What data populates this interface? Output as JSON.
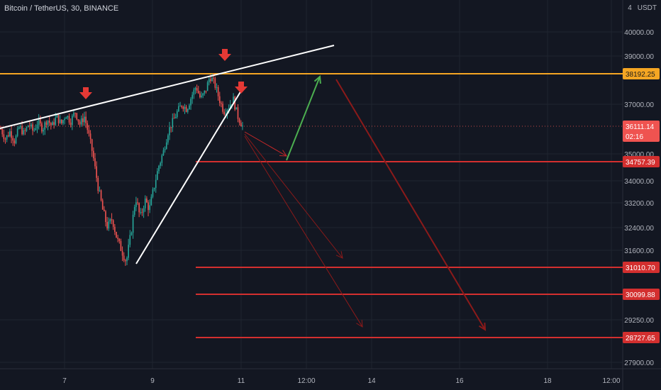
{
  "header": {
    "symbol_title": "Bitcoin / TetherUS, 30, BINANCE",
    "currency": "USDT",
    "scale_indicator": "4"
  },
  "colors": {
    "background": "#131722",
    "grid": "#1f2430",
    "up": "#26a69a",
    "down": "#ef5350",
    "resistance": "#f5a623",
    "support": "#d32f2f",
    "arrow_green": "#4caf50",
    "arrow_red": "#b71c1c",
    "trendline": "#ffffff",
    "marker": "#e53935"
  },
  "chart_data": {
    "type": "candlestick",
    "price_axis": {
      "ticks": [
        40000,
        39000,
        37000,
        35000,
        34000,
        33200,
        32400,
        31600,
        29250,
        27900
      ],
      "tick_labels": [
        "40000.00",
        "39000.00",
        "37000.00",
        "35000.00",
        "34000.00",
        "33200.00",
        "32400.00",
        "31600.00",
        "29250.00",
        "27900.00"
      ]
    },
    "time_axis": {
      "labels": [
        "7",
        "9",
        "11",
        "12:00",
        "14",
        "16",
        "18",
        "12:00"
      ]
    },
    "price_labels": [
      {
        "value": 38192.25,
        "text": "38192.25",
        "kind": "resistance"
      },
      {
        "value": 36111.14,
        "text": "36111.14",
        "sub": "02:16",
        "kind": "current"
      },
      {
        "value": 34757.39,
        "text": "34757.39",
        "kind": "support"
      },
      {
        "value": 31010.7,
        "text": "31010.70",
        "kind": "support"
      },
      {
        "value": 30099.88,
        "text": "30099.88",
        "kind": "support"
      },
      {
        "value": 28727.65,
        "text": "28727.65",
        "kind": "support"
      }
    ],
    "price_path": [
      [
        0,
        36000
      ],
      [
        2,
        35600
      ],
      [
        4,
        35900
      ],
      [
        6,
        35500
      ],
      [
        8,
        36100
      ],
      [
        10,
        35800
      ],
      [
        12,
        36200
      ],
      [
        14,
        35900
      ],
      [
        16,
        36300
      ],
      [
        18,
        36000
      ],
      [
        20,
        36400
      ],
      [
        22,
        36100
      ],
      [
        24,
        36500
      ],
      [
        26,
        36200
      ],
      [
        28,
        36600
      ],
      [
        30,
        36300
      ],
      [
        32,
        36700
      ],
      [
        34,
        36200
      ],
      [
        36,
        36500
      ],
      [
        38,
        35700
      ],
      [
        40,
        34800
      ],
      [
        42,
        33700
      ],
      [
        44,
        32900
      ],
      [
        46,
        32400
      ],
      [
        48,
        32700
      ],
      [
        50,
        32000
      ],
      [
        52,
        31600
      ],
      [
        54,
        31200
      ],
      [
        56,
        32200
      ],
      [
        58,
        33400
      ],
      [
        60,
        32700
      ],
      [
        62,
        33300
      ],
      [
        64,
        33000
      ],
      [
        66,
        33800
      ],
      [
        68,
        34600
      ],
      [
        70,
        35100
      ],
      [
        72,
        35900
      ],
      [
        74,
        36300
      ],
      [
        76,
        36700
      ],
      [
        78,
        37000
      ],
      [
        80,
        36800
      ],
      [
        82,
        37300
      ],
      [
        84,
        37700
      ],
      [
        86,
        37200
      ],
      [
        88,
        37500
      ],
      [
        90,
        38100
      ],
      [
        92,
        37800
      ],
      [
        94,
        37200
      ],
      [
        96,
        36700
      ],
      [
        98,
        36900
      ],
      [
        100,
        37200
      ],
      [
        102,
        36500
      ],
      [
        104,
        36111
      ]
    ]
  }
}
